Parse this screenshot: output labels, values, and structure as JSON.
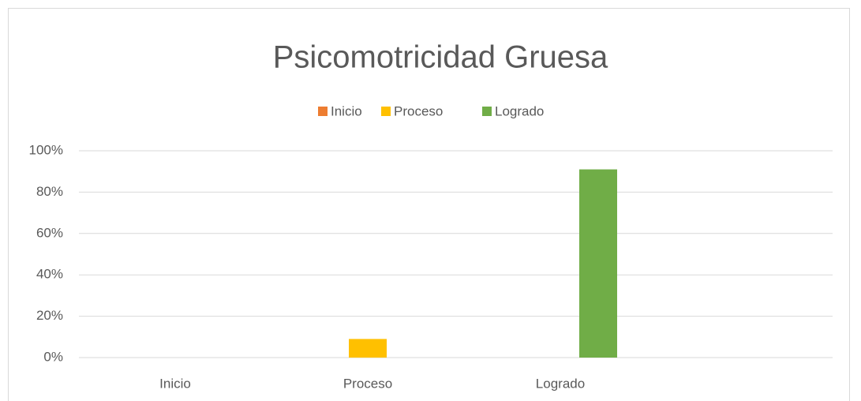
{
  "chart_data": {
    "type": "bar",
    "title": "Psicomotricidad Gruesa",
    "categories": [
      "Inicio",
      "Proceso",
      "Logrado",
      null
    ],
    "series": [
      {
        "name": "Inicio",
        "color": "#ed7d31",
        "values": [
          0,
          0,
          0,
          null
        ]
      },
      {
        "name": "Proceso",
        "color": "#ffc000",
        "values": [
          0,
          9,
          0,
          null
        ]
      },
      {
        "name": "Logrado",
        "color": "#70ad47",
        "values": [
          0,
          0,
          91,
          null
        ]
      }
    ],
    "ylim": [
      0,
      100
    ],
    "yticks": [
      {
        "value": 0,
        "label": "0%"
      },
      {
        "value": 20,
        "label": "20%"
      },
      {
        "value": 40,
        "label": "40%"
      },
      {
        "value": 60,
        "label": "60%"
      },
      {
        "value": 80,
        "label": "80%"
      },
      {
        "value": 100,
        "label": "100%"
      }
    ],
    "grid": true,
    "legend": "top"
  }
}
